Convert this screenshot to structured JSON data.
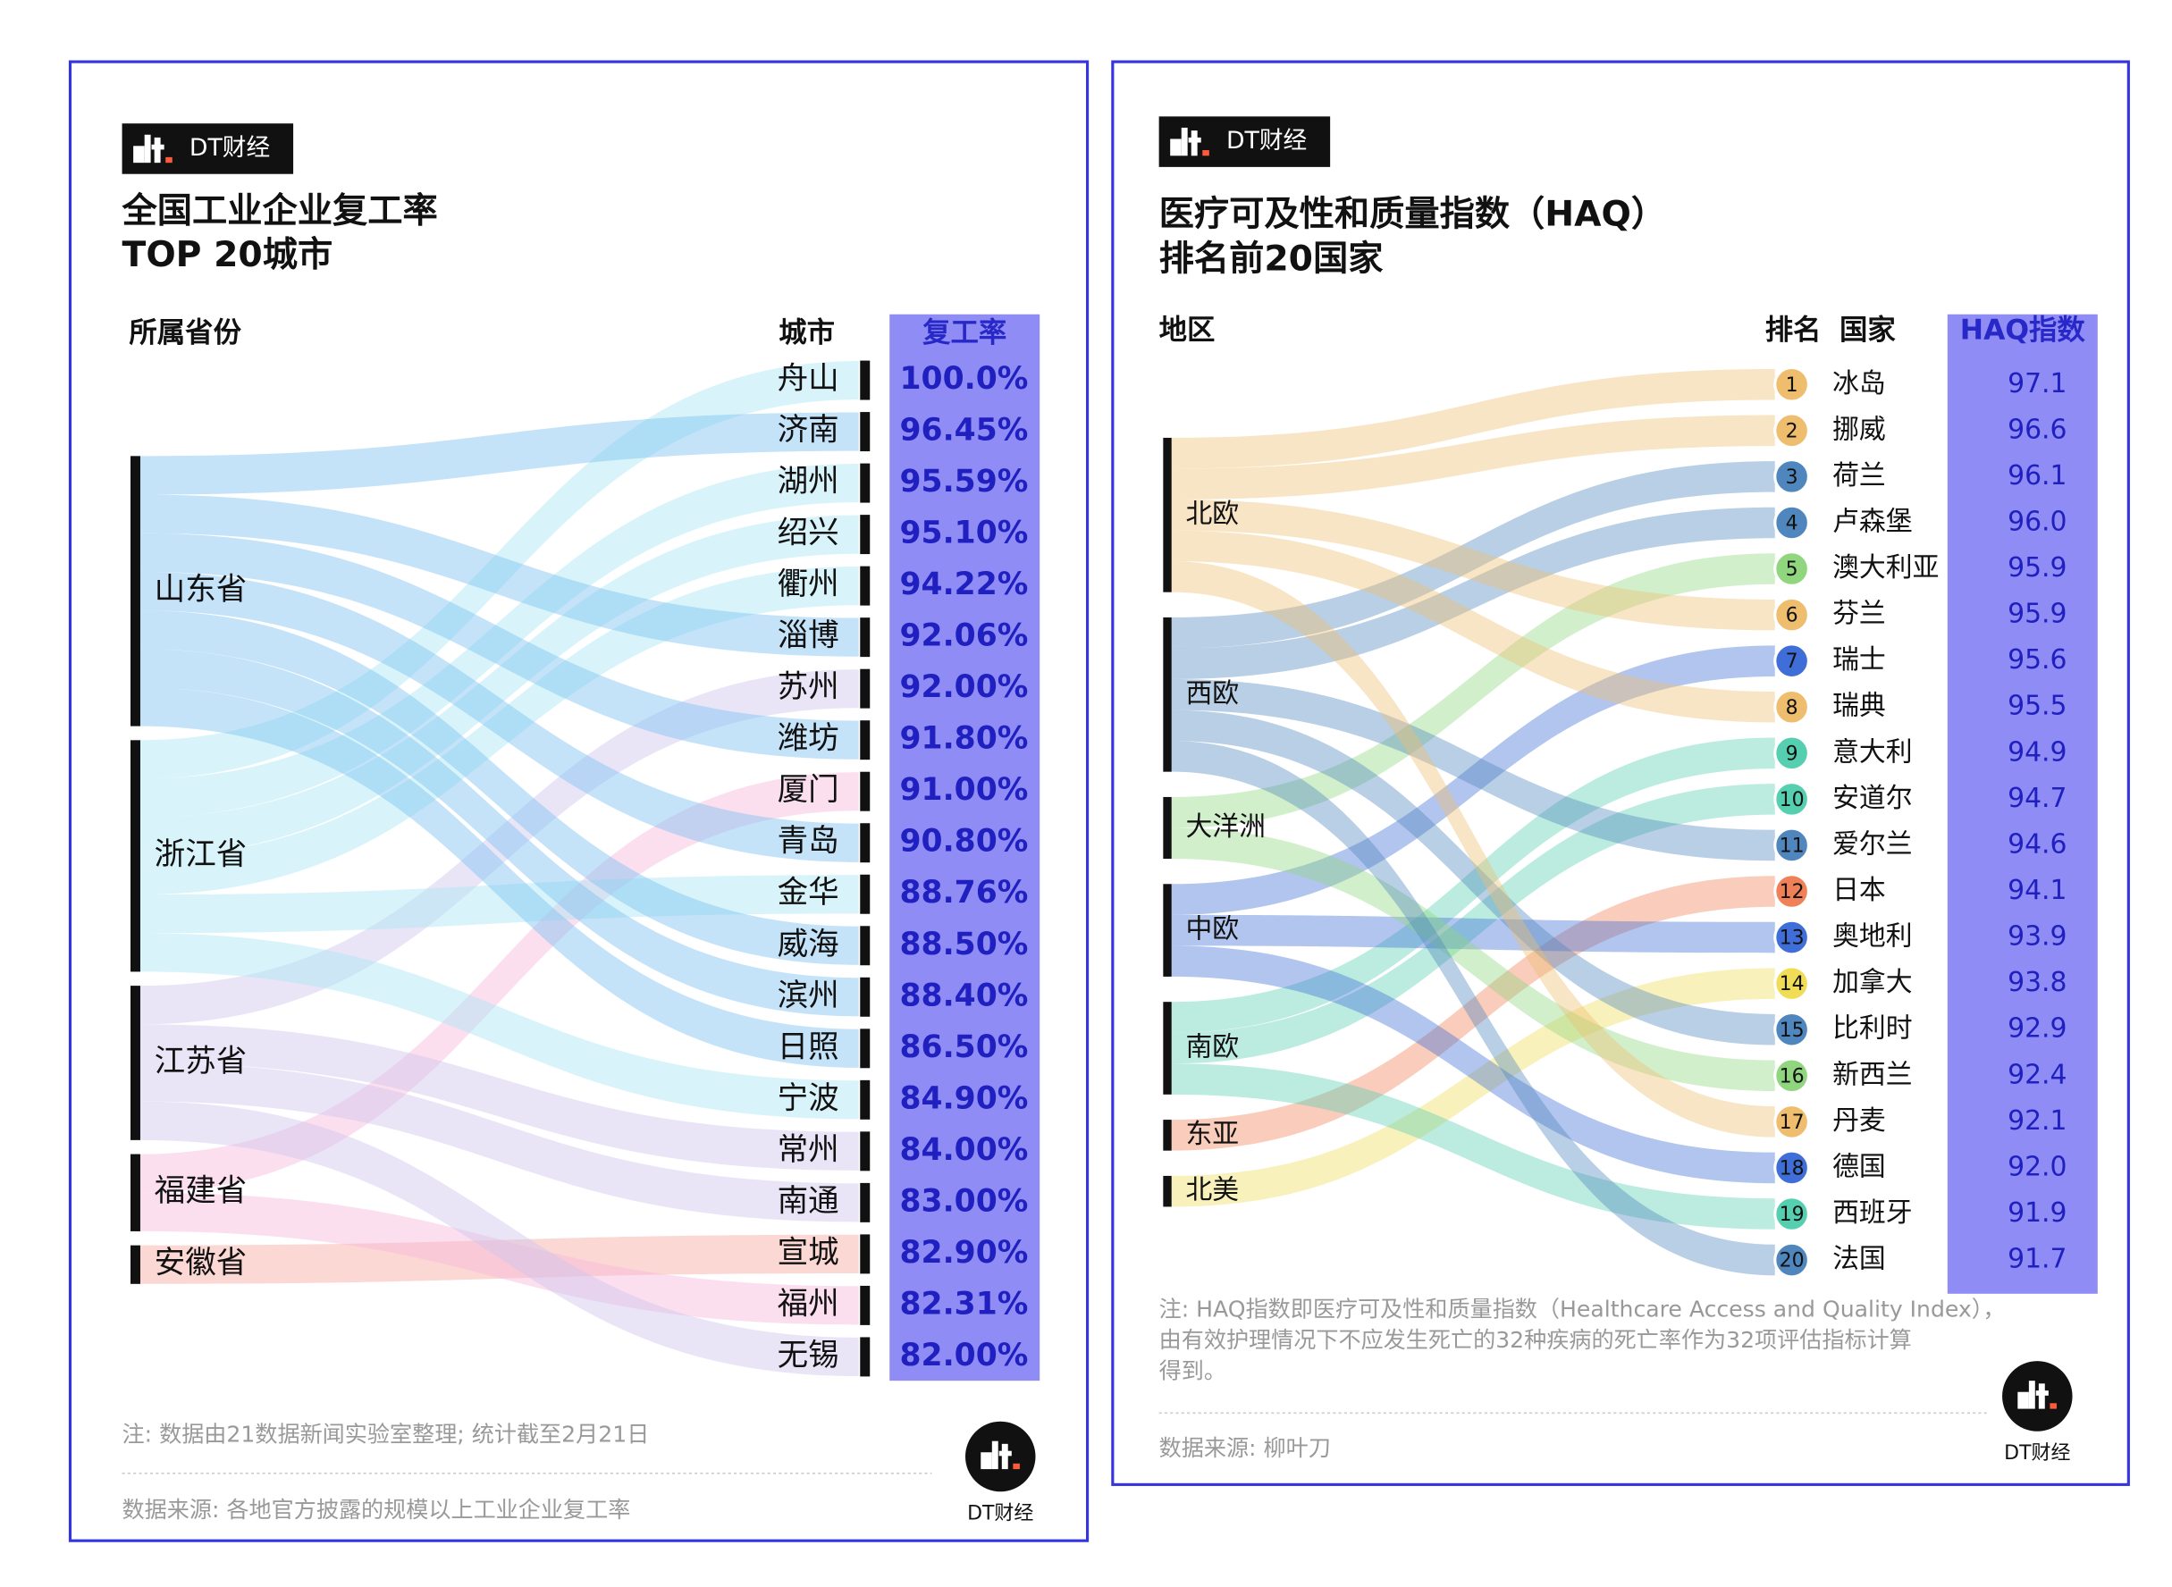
{
  "chart_data": [
    {
      "type": "sankey",
      "brand": "DT财经",
      "title": "全国工业企业复工率",
      "subtitle": "TOP 20城市",
      "source_header": "所属省份",
      "target_header": "城市",
      "value_header": "复工率",
      "sources": [
        "山东省",
        "浙江省",
        "江苏省",
        "福建省",
        "安徽省"
      ],
      "source_colors": [
        "#7cc0f2",
        "#a8e6f5",
        "#cfc6ee",
        "#f6b9dc",
        "#f7a9a0"
      ],
      "categories": [
        "舟山",
        "济南",
        "湖州",
        "绍兴",
        "衢州",
        "淄博",
        "苏州",
        "潍坊",
        "厦门",
        "青岛",
        "金华",
        "威海",
        "滨州",
        "日照",
        "宁波",
        "常州",
        "南通",
        "宣城",
        "福州",
        "无锡"
      ],
      "groups": [
        "浙江省",
        "山东省",
        "浙江省",
        "浙江省",
        "浙江省",
        "山东省",
        "江苏省",
        "山东省",
        "福建省",
        "山东省",
        "浙江省",
        "山东省",
        "山东省",
        "山东省",
        "浙江省",
        "江苏省",
        "江苏省",
        "安徽省",
        "福建省",
        "江苏省"
      ],
      "values": [
        100.0,
        96.45,
        95.59,
        95.1,
        94.22,
        92.06,
        92.0,
        91.8,
        91.0,
        90.8,
        88.76,
        88.5,
        88.4,
        86.5,
        84.9,
        84.0,
        83.0,
        82.9,
        82.31,
        82.0
      ],
      "value_labels": [
        "100.0%",
        "96.45%",
        "95.59%",
        "95.10%",
        "94.22%",
        "92.06%",
        "92.00%",
        "91.80%",
        "91.00%",
        "90.80%",
        "88.76%",
        "88.50%",
        "88.40%",
        "86.50%",
        "84.90%",
        "84.00%",
        "83.00%",
        "82.90%",
        "82.31%",
        "82.00%"
      ],
      "note": [
        "注: 数据由21数据新闻实验室整理; 统计截至2月21日"
      ],
      "data_source": "数据来源: 各地官方披露的规模以上工业企业复工率"
    },
    {
      "type": "sankey",
      "brand": "DT财经",
      "title": "医疗可及性和质量指数（HAQ）",
      "subtitle": "排名前20国家",
      "source_header": "地区",
      "rank_header": "排名",
      "target_header": "国家",
      "value_header": "HAQ指数",
      "sources": [
        "北欧",
        "西欧",
        "大洋洲",
        "中欧",
        "南欧",
        "东亚",
        "北美"
      ],
      "source_colors": [
        "#eebd6e",
        "#4f86bd",
        "#8fd67e",
        "#3f6ed8",
        "#56cfb0",
        "#f08058",
        "#f0dd55"
      ],
      "ranks": [
        1,
        2,
        3,
        4,
        5,
        6,
        7,
        8,
        9,
        10,
        11,
        12,
        13,
        14,
        15,
        16,
        17,
        18,
        19,
        20
      ],
      "categories": [
        "冰岛",
        "挪威",
        "荷兰",
        "卢森堡",
        "澳大利亚",
        "芬兰",
        "瑞士",
        "瑞典",
        "意大利",
        "安道尔",
        "爱尔兰",
        "日本",
        "奥地利",
        "加拿大",
        "比利时",
        "新西兰",
        "丹麦",
        "德国",
        "西班牙",
        "法国"
      ],
      "groups": [
        "北欧",
        "北欧",
        "西欧",
        "西欧",
        "大洋洲",
        "北欧",
        "中欧",
        "北欧",
        "南欧",
        "南欧",
        "西欧",
        "东亚",
        "中欧",
        "北美",
        "西欧",
        "大洋洲",
        "北欧",
        "中欧",
        "南欧",
        "西欧"
      ],
      "values": [
        97.1,
        96.6,
        96.1,
        96.0,
        95.9,
        95.9,
        95.6,
        95.5,
        94.9,
        94.7,
        94.6,
        94.1,
        93.9,
        93.8,
        92.9,
        92.4,
        92.1,
        92.0,
        91.9,
        91.7
      ],
      "value_labels": [
        "97.1",
        "96.6",
        "96.1",
        "96.0",
        "95.9",
        "95.9",
        "95.6",
        "95.5",
        "94.9",
        "94.7",
        "94.6",
        "94.1",
        "93.9",
        "93.8",
        "92.9",
        "92.4",
        "92.1",
        "92.0",
        "91.9",
        "91.7"
      ],
      "note": [
        "注: HAQ指数即医疗可及性和质量指数（Healthcare Access and Quality Index），",
        "由有效护理情况下不应发生死亡的32种疾病的死亡率作为32项评估指标计算",
        "得到。"
      ],
      "data_source": "数据来源: 柳叶刀"
    }
  ]
}
